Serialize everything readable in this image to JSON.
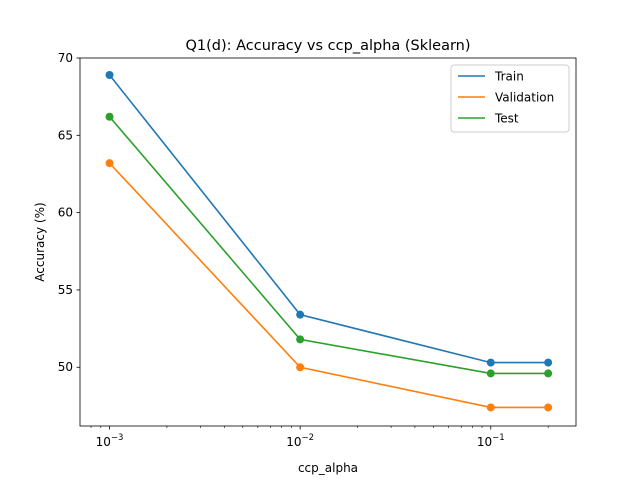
{
  "chart_data": {
    "type": "line",
    "title": "Q1(d): Accuracy vs ccp_alpha (Sklearn)",
    "xlabel": "ccp_alpha",
    "ylabel": "Accuracy (%)",
    "xscale": "log",
    "x": [
      0.001,
      0.01,
      0.1,
      0.2
    ],
    "xticks": [
      {
        "value": 0.001,
        "base": "10",
        "exp": "−3"
      },
      {
        "value": 0.01,
        "base": "10",
        "exp": "−2"
      },
      {
        "value": 0.1,
        "base": "10",
        "exp": "−1"
      }
    ],
    "yticks": [
      "50",
      "55",
      "60",
      "65",
      "70"
    ],
    "ylim": [
      46.2,
      70
    ],
    "grid": false,
    "legend_position": "top-right",
    "series": [
      {
        "name": "Train",
        "color": "#1f77b4",
        "values": [
          68.9,
          53.4,
          50.3,
          50.3
        ]
      },
      {
        "name": "Validation",
        "color": "#ff7f0e",
        "values": [
          63.2,
          50.0,
          47.4,
          47.4
        ]
      },
      {
        "name": "Test",
        "color": "#2ca02c",
        "values": [
          66.2,
          51.8,
          49.6,
          49.6
        ]
      }
    ]
  }
}
